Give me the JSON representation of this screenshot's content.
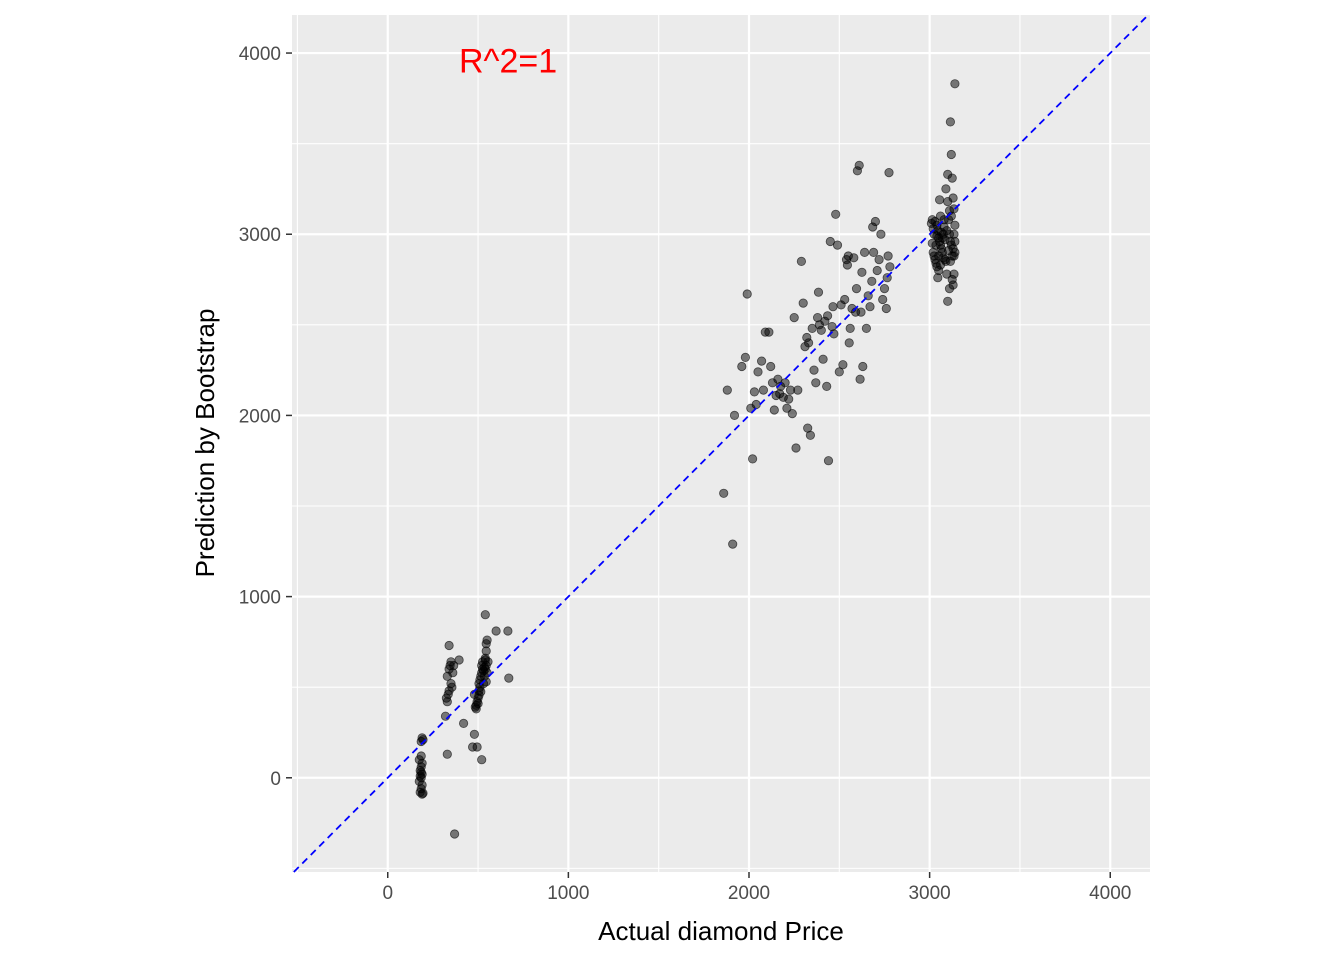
{
  "chart_data": {
    "type": "scatter",
    "xlabel": "Actual diamond Price",
    "ylabel": "Prediction by Bootstrap",
    "xlim": [
      -530,
      4220
    ],
    "ylim": [
      -520,
      4210
    ],
    "x_ticks": [
      0,
      1000,
      2000,
      3000,
      4000
    ],
    "y_ticks": [
      0,
      1000,
      2000,
      3000,
      4000
    ],
    "x_tick_labels": [
      "0",
      "1000",
      "2000",
      "3000",
      "4000"
    ],
    "y_tick_labels": [
      "0",
      "1000",
      "2000",
      "3000",
      "4000"
    ],
    "grid": true,
    "panel_background": "#ebebeb",
    "grid_color": "#ffffff",
    "point_color": "#000000",
    "point_alpha": 0.5,
    "reference_line": {
      "slope": 1,
      "intercept": 0,
      "color": "#0000ff",
      "style": "dashed"
    },
    "annotation": {
      "text": "R^2=1",
      "x": 500,
      "y": 3960,
      "color": "#ff0000"
    },
    "points": [
      [
        180,
        -80
      ],
      [
        185,
        -60
      ],
      [
        190,
        -40
      ],
      [
        175,
        -20
      ],
      [
        185,
        0
      ],
      [
        190,
        20
      ],
      [
        180,
        40
      ],
      [
        185,
        60
      ],
      [
        190,
        80
      ],
      [
        175,
        100
      ],
      [
        185,
        120
      ],
      [
        190,
        -90
      ],
      [
        195,
        -85
      ],
      [
        180,
        10
      ],
      [
        185,
        30
      ],
      [
        190,
        220
      ],
      [
        185,
        200
      ],
      [
        195,
        210
      ],
      [
        330,
        130
      ],
      [
        330,
        420
      ],
      [
        325,
        440
      ],
      [
        335,
        460
      ],
      [
        340,
        480
      ],
      [
        330,
        560
      ],
      [
        340,
        600
      ],
      [
        345,
        620
      ],
      [
        350,
        640
      ],
      [
        340,
        730
      ],
      [
        320,
        340
      ],
      [
        360,
        580
      ],
      [
        350,
        520
      ],
      [
        355,
        500
      ],
      [
        365,
        620
      ],
      [
        370,
        -310
      ],
      [
        395,
        650
      ],
      [
        420,
        300
      ],
      [
        470,
        170
      ],
      [
        480,
        240
      ],
      [
        495,
        170
      ],
      [
        490,
        380
      ],
      [
        490,
        400
      ],
      [
        495,
        420
      ],
      [
        500,
        440
      ],
      [
        480,
        460
      ],
      [
        485,
        390
      ],
      [
        500,
        410
      ],
      [
        505,
        480
      ],
      [
        510,
        500
      ],
      [
        505,
        520
      ],
      [
        510,
        540
      ],
      [
        515,
        560
      ],
      [
        520,
        580
      ],
      [
        525,
        600
      ],
      [
        520,
        620
      ],
      [
        525,
        640
      ],
      [
        520,
        100
      ],
      [
        530,
        520
      ],
      [
        535,
        560
      ],
      [
        540,
        600
      ],
      [
        545,
        620
      ],
      [
        540,
        650
      ],
      [
        545,
        700
      ],
      [
        545,
        740
      ],
      [
        550,
        760
      ],
      [
        540,
        900
      ],
      [
        540,
        660
      ],
      [
        550,
        580
      ],
      [
        555,
        640
      ],
      [
        545,
        530
      ],
      [
        600,
        810
      ],
      [
        665,
        810
      ],
      [
        670,
        550
      ],
      [
        505,
        455
      ],
      [
        515,
        475
      ],
      [
        530,
        590
      ],
      [
        535,
        610
      ],
      [
        1860,
        1570
      ],
      [
        1880,
        2140
      ],
      [
        1910,
        1290
      ],
      [
        1920,
        2000
      ],
      [
        1960,
        2270
      ],
      [
        1980,
        2320
      ],
      [
        1990,
        2670
      ],
      [
        2010,
        2040
      ],
      [
        2020,
        1760
      ],
      [
        2030,
        2130
      ],
      [
        2040,
        2060
      ],
      [
        2050,
        2240
      ],
      [
        2070,
        2300
      ],
      [
        2080,
        2140
      ],
      [
        2090,
        2460
      ],
      [
        2110,
        2460
      ],
      [
        2120,
        2270
      ],
      [
        2130,
        2180
      ],
      [
        2140,
        2030
      ],
      [
        2150,
        2110
      ],
      [
        2160,
        2200
      ],
      [
        2170,
        2120
      ],
      [
        2175,
        2160
      ],
      [
        2190,
        2100
      ],
      [
        2200,
        2180
      ],
      [
        2210,
        2040
      ],
      [
        2220,
        2090
      ],
      [
        2230,
        2140
      ],
      [
        2240,
        2010
      ],
      [
        2250,
        2540
      ],
      [
        2260,
        1820
      ],
      [
        2270,
        2140
      ],
      [
        2290,
        2850
      ],
      [
        2300,
        2620
      ],
      [
        2310,
        2380
      ],
      [
        2320,
        2430
      ],
      [
        2325,
        1930
      ],
      [
        2330,
        2400
      ],
      [
        2340,
        1890
      ],
      [
        2350,
        2480
      ],
      [
        2360,
        2250
      ],
      [
        2370,
        2180
      ],
      [
        2380,
        2540
      ],
      [
        2385,
        2680
      ],
      [
        2390,
        2500
      ],
      [
        2400,
        2470
      ],
      [
        2410,
        2310
      ],
      [
        2420,
        2520
      ],
      [
        2430,
        2160
      ],
      [
        2440,
        1750
      ],
      [
        2450,
        2960
      ],
      [
        2460,
        2490
      ],
      [
        2470,
        2450
      ],
      [
        2480,
        3110
      ],
      [
        2490,
        2940
      ],
      [
        2500,
        2240
      ],
      [
        2510,
        2610
      ],
      [
        2520,
        2280
      ],
      [
        2530,
        2640
      ],
      [
        2540,
        2860
      ],
      [
        2550,
        2880
      ],
      [
        2560,
        2480
      ],
      [
        2570,
        2590
      ],
      [
        2580,
        2870
      ],
      [
        2590,
        2570
      ],
      [
        2600,
        3350
      ],
      [
        2610,
        3380
      ],
      [
        2615,
        2200
      ],
      [
        2620,
        2570
      ],
      [
        2625,
        2790
      ],
      [
        2630,
        2270
      ],
      [
        2640,
        2900
      ],
      [
        2650,
        2480
      ],
      [
        2660,
        2660
      ],
      [
        2670,
        2600
      ],
      [
        2680,
        2740
      ],
      [
        2690,
        2900
      ],
      [
        2700,
        3070
      ],
      [
        2710,
        2800
      ],
      [
        2720,
        2860
      ],
      [
        2730,
        3000
      ],
      [
        2740,
        2640
      ],
      [
        2750,
        2700
      ],
      [
        2760,
        2590
      ],
      [
        2770,
        2880
      ],
      [
        2775,
        3340
      ],
      [
        2780,
        2820
      ],
      [
        2545,
        2830
      ],
      [
        2555,
        2400
      ],
      [
        2465,
        2600
      ],
      [
        2435,
        2550
      ],
      [
        2595,
        2700
      ],
      [
        2685,
        3040
      ],
      [
        2765,
        2760
      ],
      [
        3010,
        3060
      ],
      [
        3015,
        3080
      ],
      [
        3020,
        2900
      ],
      [
        3025,
        2880
      ],
      [
        3030,
        2860
      ],
      [
        3035,
        2840
      ],
      [
        3040,
        3050
      ],
      [
        3045,
        3020
      ],
      [
        3050,
        2980
      ],
      [
        3055,
        2960
      ],
      [
        3060,
        2940
      ],
      [
        3040,
        2820
      ],
      [
        3045,
        2760
      ],
      [
        3050,
        2800
      ],
      [
        3055,
        3190
      ],
      [
        3060,
        3100
      ],
      [
        3065,
        2920
      ],
      [
        3070,
        2900
      ],
      [
        3075,
        3000
      ],
      [
        3080,
        3040
      ],
      [
        3085,
        2860
      ],
      [
        3090,
        2850
      ],
      [
        3095,
        2780
      ],
      [
        3100,
        2630
      ],
      [
        3100,
        3330
      ],
      [
        3105,
        3080
      ],
      [
        3110,
        3000
      ],
      [
        3115,
        2960
      ],
      [
        3120,
        2940
      ],
      [
        3110,
        2700
      ],
      [
        3115,
        3620
      ],
      [
        3120,
        3440
      ],
      [
        3125,
        3310
      ],
      [
        3130,
        3200
      ],
      [
        3135,
        3140
      ],
      [
        3140,
        3050
      ],
      [
        3140,
        3830
      ],
      [
        3130,
        2920
      ],
      [
        3135,
        2880
      ],
      [
        3140,
        2900
      ],
      [
        3125,
        2750
      ],
      [
        3130,
        2720
      ],
      [
        3135,
        2780
      ],
      [
        3120,
        3100
      ],
      [
        3110,
        3130
      ],
      [
        3100,
        3180
      ],
      [
        3090,
        3250
      ],
      [
        3080,
        3080
      ],
      [
        3070,
        2980
      ],
      [
        3060,
        2830
      ],
      [
        3050,
        2880
      ],
      [
        3035,
        2940
      ],
      [
        3025,
        3000
      ],
      [
        3015,
        2950
      ],
      [
        3030,
        3070
      ],
      [
        3040,
        2990
      ],
      [
        3020,
        3030
      ],
      [
        3065,
        3010
      ],
      [
        3075,
        2870
      ],
      [
        3085,
        2970
      ],
      [
        3095,
        3020
      ],
      [
        3105,
        2910
      ],
      [
        3115,
        2850
      ],
      [
        3125,
        2880
      ],
      [
        3135,
        3000
      ],
      [
        3140,
        2960
      ]
    ]
  }
}
